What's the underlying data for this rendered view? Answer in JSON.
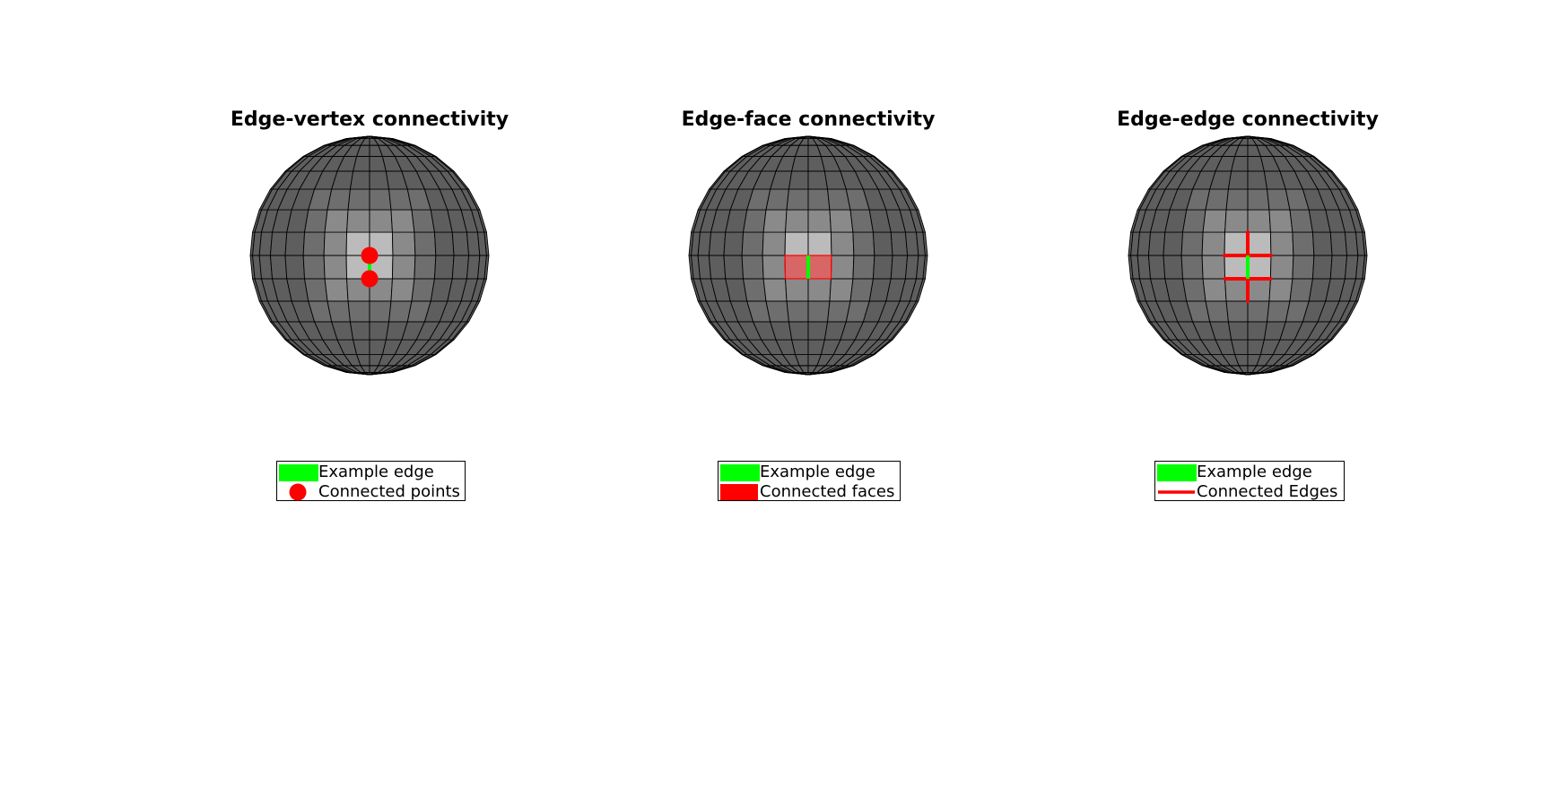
{
  "panels": [
    {
      "title": "Edge-vertex connectivity",
      "highlight": "points",
      "legend": {
        "entry1": "Example edge",
        "entry2": "Connected points"
      }
    },
    {
      "title": "Edge-face connectivity",
      "highlight": "faces",
      "legend": {
        "entry1": "Example edge",
        "entry2": "Connected faces"
      }
    },
    {
      "title": "Edge-edge connectivity",
      "highlight": "edges",
      "legend": {
        "entry1": "Example edge",
        "entry2": "Connected Edges"
      }
    }
  ],
  "colors": {
    "example_edge": "#00ff00",
    "connected": "#ff0000",
    "mesh_edge": "#000000",
    "face_light": "#bbbbbb",
    "face_mid": "#8a8a8a",
    "face_dark": "#6e6e6e",
    "face_darkest": "#5e5e5e"
  }
}
